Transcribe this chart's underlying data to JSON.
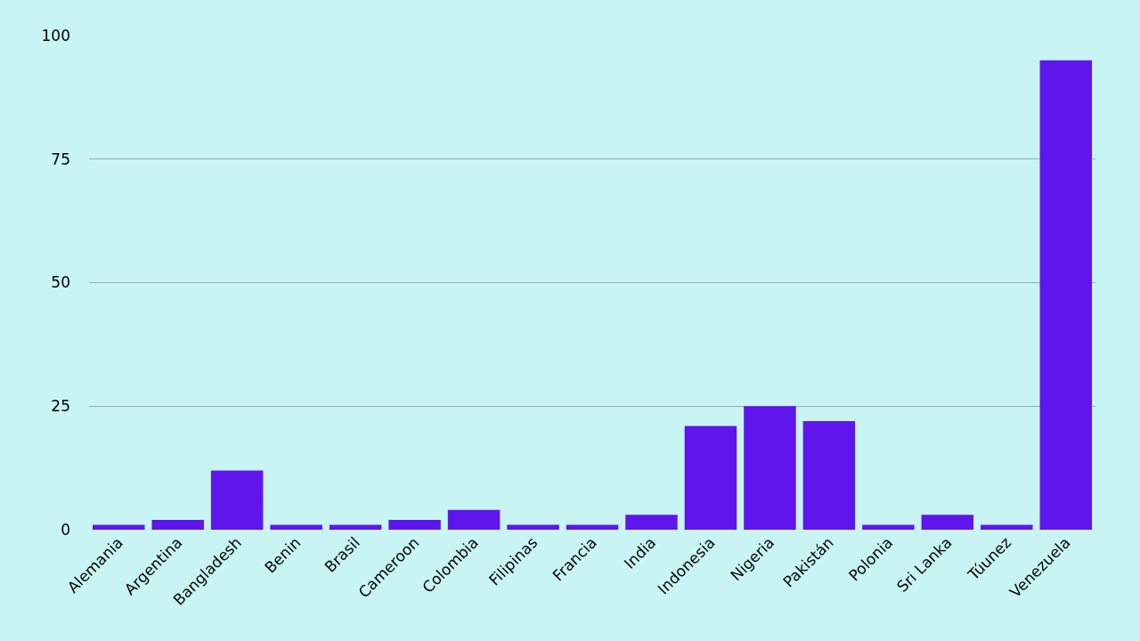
{
  "chart_data": {
    "type": "bar",
    "categories": [
      "Alemania",
      "Argentina",
      "Bangladesh",
      "Benin",
      "Brasil",
      "Cameroon",
      "Colombia",
      "Filipinas",
      "Francia",
      "India",
      "Indonesia",
      "Nigeria",
      "Pakistán",
      "Polonia",
      "Sri Lanka",
      "Túunez",
      "Venezuela"
    ],
    "values": [
      1,
      2,
      12,
      1,
      1,
      2,
      4,
      1,
      1,
      3,
      21,
      25,
      22,
      1,
      3,
      1,
      95
    ],
    "color": "#5f16ec",
    "ylim": [
      0,
      100
    ],
    "yticks": [
      0,
      25,
      50,
      75,
      100
    ],
    "grid": "y",
    "legend": false
  }
}
